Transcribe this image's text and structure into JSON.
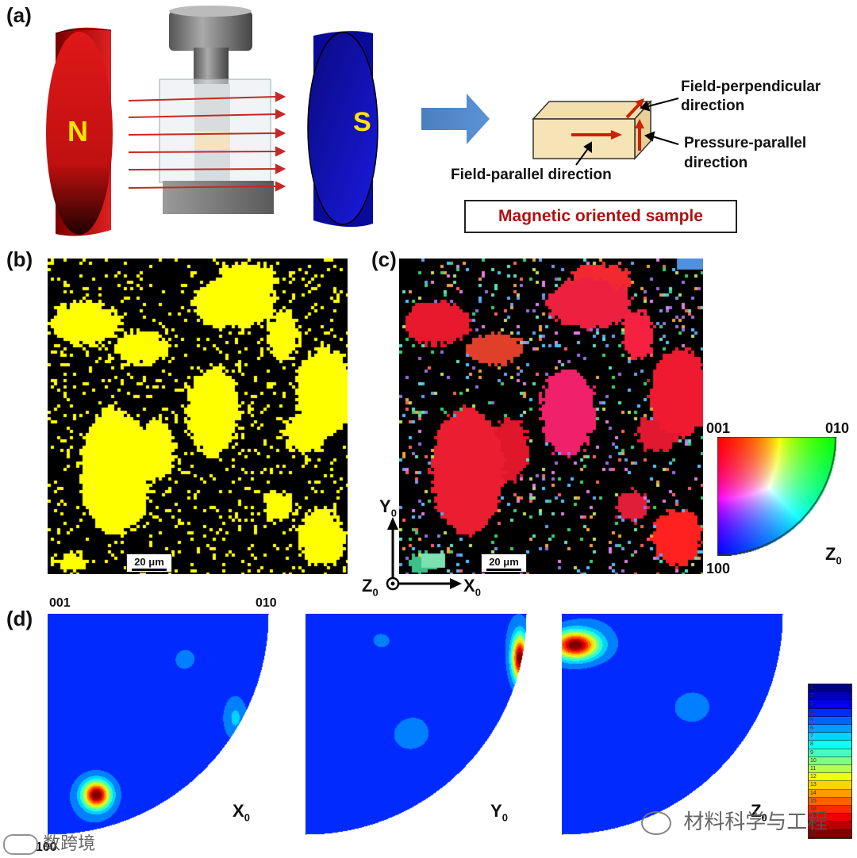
{
  "panels": {
    "a": "(a)",
    "b": "(b)",
    "c": "(c)",
    "d": "(d)"
  },
  "setup": {
    "magnet_north": "N",
    "magnet_south": "S",
    "north_color": "#d11a1a",
    "south_color": "#1a1ad4"
  },
  "sample": {
    "field_perpendicular_line1": "Field-perpendicular",
    "field_perpendicular_line2": "direction",
    "pressure_parallel_line1": "Pressure-parallel",
    "pressure_parallel_line2": "direction",
    "field_parallel": "Field-parallel direction",
    "box_label": "Magnetic oriented sample"
  },
  "maps": {
    "scalebar_b": "20 μm",
    "scalebar_c": "20 μm",
    "phase_color": "#ffff00"
  },
  "axes": {
    "y": "Y",
    "x": "X",
    "z": "Z",
    "sub": "0"
  },
  "ipf_key": {
    "label_001": "001",
    "label_010": "010",
    "label_100": "100",
    "axis": "Z",
    "sub": "0"
  },
  "pole_figures": {
    "label_001": "001",
    "label_010": "010",
    "label_100": "100",
    "items": [
      {
        "axis": "X",
        "sub": "0"
      },
      {
        "axis": "Y",
        "sub": "0"
      },
      {
        "axis": "Z",
        "sub": "0"
      }
    ]
  },
  "legend_scale": [
    "1",
    "2",
    "3",
    "4",
    "5",
    "6",
    "7",
    "8",
    "9",
    "10",
    "11",
    "12",
    "13",
    "14",
    "15",
    "16",
    "17",
    "18",
    "19"
  ],
  "watermarks": {
    "left": "数跨境",
    "right": "材料科学与工程"
  }
}
